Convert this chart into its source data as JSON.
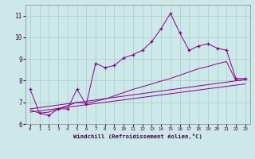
{
  "xlabel": "Windchill (Refroidissement éolien,°C)",
  "bg_color": "#cce8e8",
  "line_color": "#880088",
  "grid_color": "#aacccc",
  "ylim": [
    6.0,
    11.5
  ],
  "xlim": [
    -0.5,
    23.5
  ],
  "yticks": [
    6,
    7,
    8,
    9,
    10,
    11
  ],
  "xticks": [
    0,
    1,
    2,
    3,
    4,
    5,
    6,
    7,
    8,
    9,
    10,
    11,
    12,
    13,
    14,
    15,
    16,
    17,
    18,
    19,
    20,
    21,
    22,
    23
  ],
  "series1_x": [
    0,
    1,
    2,
    3,
    4,
    5,
    6,
    7,
    8,
    9,
    10,
    11,
    12,
    13,
    14,
    15,
    16,
    17,
    18,
    19,
    20,
    21,
    22,
    23
  ],
  "series1_y": [
    7.6,
    6.5,
    6.4,
    6.7,
    6.7,
    7.6,
    6.9,
    8.8,
    8.6,
    8.7,
    9.05,
    9.2,
    9.4,
    9.8,
    10.4,
    11.1,
    10.2,
    9.4,
    9.6,
    9.7,
    9.5,
    9.4,
    8.1,
    8.1
  ],
  "series2_x": [
    0,
    1,
    2,
    3,
    4,
    5,
    6,
    7,
    8,
    9,
    10,
    11,
    12,
    13,
    14,
    15,
    16,
    17,
    18,
    19,
    20,
    21,
    22,
    23
  ],
  "series2_y": [
    6.65,
    6.5,
    6.55,
    6.7,
    6.85,
    7.0,
    6.95,
    7.05,
    7.15,
    7.3,
    7.45,
    7.6,
    7.72,
    7.85,
    7.98,
    8.1,
    8.25,
    8.4,
    8.55,
    8.65,
    8.78,
    8.88,
    8.0,
    8.05
  ],
  "series3_x": [
    0,
    23
  ],
  "series3_y": [
    6.7,
    8.05
  ],
  "series4_x": [
    0,
    23
  ],
  "series4_y": [
    6.55,
    7.85
  ]
}
